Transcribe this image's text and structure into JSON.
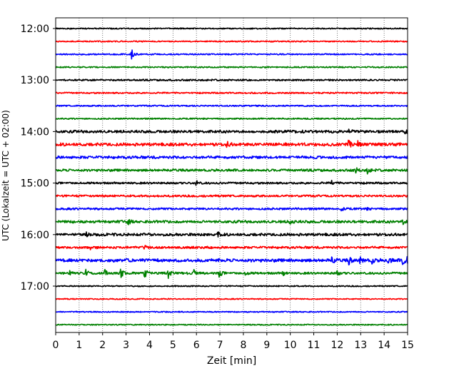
{
  "chart_data": {
    "type": "line",
    "title": "",
    "xlabel": "Zeit  [min]",
    "ylabel": "UTC (Lokalzeit = UTC + 02:00)",
    "xlim": [
      0,
      15
    ],
    "x_ticks": [
      "0",
      "1",
      "2",
      "3",
      "4",
      "5",
      "6",
      "7",
      "8",
      "9",
      "10",
      "11",
      "12",
      "13",
      "14",
      "15"
    ],
    "y_ticks": [
      "12:00",
      "13:00",
      "14:00",
      "15:00",
      "16:00",
      "17:00"
    ],
    "grid": "vertical dotted",
    "trace_interval_minutes": 15,
    "trace_start": "12:00",
    "trace_end": "17:45",
    "color_cycle": [
      "#000000",
      "#ff0000",
      "#0000ff",
      "#008000"
    ],
    "traces": [
      {
        "start": "12:00",
        "activity": 0.08,
        "events": []
      },
      {
        "start": "12:15",
        "activity": 0.08,
        "events": []
      },
      {
        "start": "12:30",
        "activity": 0.1,
        "events": [
          {
            "t": 3.25,
            "amp": 8
          }
        ]
      },
      {
        "start": "12:45",
        "activity": 0.1,
        "events": []
      },
      {
        "start": "13:00",
        "activity": 0.2,
        "events": []
      },
      {
        "start": "13:15",
        "activity": 0.15,
        "events": []
      },
      {
        "start": "13:30",
        "activity": 0.12,
        "events": []
      },
      {
        "start": "13:45",
        "activity": 0.12,
        "events": []
      },
      {
        "start": "14:00",
        "activity": 0.45,
        "events": [
          {
            "t": 12.5,
            "amp": 3
          },
          {
            "t": 14.9,
            "amp": 3
          }
        ]
      },
      {
        "start": "14:15",
        "activity": 0.55,
        "events": [
          {
            "t": 7.3,
            "amp": 4
          },
          {
            "t": 12.5,
            "amp": 6
          },
          {
            "t": 12.9,
            "amp": 5
          }
        ]
      },
      {
        "start": "14:30",
        "activity": 0.45,
        "events": []
      },
      {
        "start": "14:45",
        "activity": 0.4,
        "events": [
          {
            "t": 12.8,
            "amp": 3
          },
          {
            "t": 13.3,
            "amp": 4
          }
        ]
      },
      {
        "start": "15:00",
        "activity": 0.3,
        "events": [
          {
            "t": 6.0,
            "amp": 3
          },
          {
            "t": 11.8,
            "amp": 3
          }
        ]
      },
      {
        "start": "15:15",
        "activity": 0.3,
        "events": []
      },
      {
        "start": "15:30",
        "activity": 0.3,
        "events": [
          {
            "t": 12.2,
            "amp": 2
          },
          {
            "t": 13.2,
            "amp": 2
          }
        ]
      },
      {
        "start": "15:45",
        "activity": 0.45,
        "events": [
          {
            "t": 3.1,
            "amp": 3
          },
          {
            "t": 10.0,
            "amp": 4
          },
          {
            "t": 14.8,
            "amp": 3
          }
        ]
      },
      {
        "start": "16:00",
        "activity": 0.45,
        "events": [
          {
            "t": 6.9,
            "amp": 4
          },
          {
            "t": 1.3,
            "amp": 2
          }
        ]
      },
      {
        "start": "16:15",
        "activity": 0.35,
        "events": [
          {
            "t": 1.5,
            "amp": 2
          },
          {
            "t": 3.8,
            "amp": 2
          }
        ]
      },
      {
        "start": "16:30",
        "activity": 0.6,
        "events": [
          {
            "t": 11.8,
            "amp": 4
          },
          {
            "t": 12.5,
            "amp": 5
          },
          {
            "t": 13.0,
            "amp": 4
          },
          {
            "t": 13.5,
            "amp": 4
          },
          {
            "t": 14.2,
            "amp": 4
          },
          {
            "t": 14.8,
            "amp": 6
          },
          {
            "t": 15.0,
            "amp": 4
          }
        ]
      },
      {
        "start": "16:45",
        "activity": 0.35,
        "events": [
          {
            "t": 0.6,
            "amp": 5
          },
          {
            "t": 1.3,
            "amp": 5
          },
          {
            "t": 2.1,
            "amp": 5
          },
          {
            "t": 2.8,
            "amp": 5
          },
          {
            "t": 3.8,
            "amp": 6
          },
          {
            "t": 4.8,
            "amp": 6
          },
          {
            "t": 5.9,
            "amp": 4
          },
          {
            "t": 7.0,
            "amp": 5
          },
          {
            "t": 8.1,
            "amp": 4
          },
          {
            "t": 9.7,
            "amp": 3
          },
          {
            "t": 12.0,
            "amp": 3
          }
        ]
      },
      {
        "start": "17:00",
        "activity": 0.08,
        "events": []
      },
      {
        "start": "17:15",
        "activity": 0.05,
        "events": []
      },
      {
        "start": "17:30",
        "activity": 0.05,
        "events": []
      },
      {
        "start": "17:45",
        "activity": 0.05,
        "events": []
      }
    ]
  }
}
